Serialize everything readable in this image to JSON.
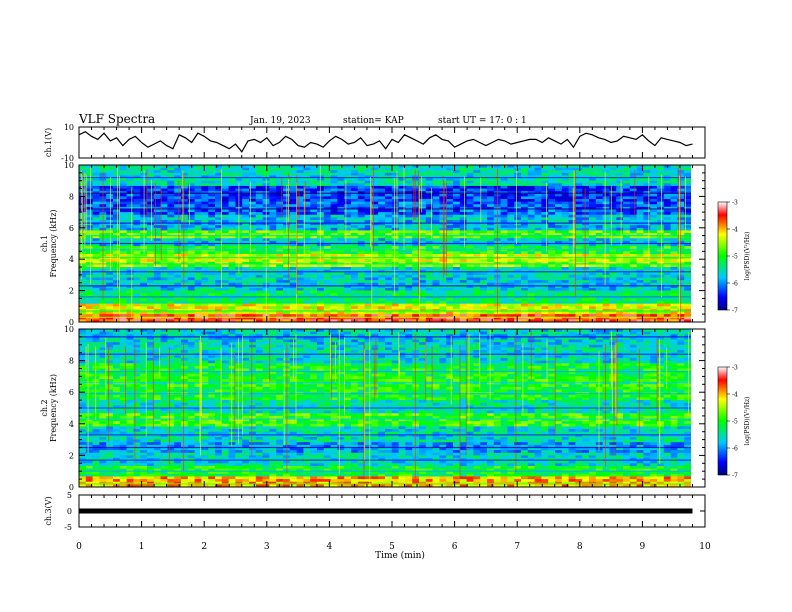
{
  "header": {
    "title": "VLF Spectra",
    "date": "Jan. 19, 2023",
    "station": "station= KAP",
    "start": "start  UT =   17: 0  : 1"
  },
  "chart_data": [
    {
      "type": "line",
      "id": "ch1-waveform",
      "ylabel": "ch.1(V)",
      "ylim": [
        -10,
        10
      ],
      "yticks": [
        "10",
        "-10"
      ],
      "xlim": [
        0,
        10
      ],
      "series": [
        {
          "color": "#000000",
          "x": [
            0,
            0.1,
            0.2,
            0.3,
            0.4,
            0.5,
            0.6,
            0.7,
            0.8,
            0.9,
            1.0,
            1.1,
            1.2,
            1.3,
            1.4,
            1.5,
            1.6,
            1.7,
            1.8,
            1.9,
            2.0,
            2.1,
            2.2,
            2.3,
            2.4,
            2.5,
            2.6,
            2.7,
            2.8,
            2.9,
            3.0,
            3.1,
            3.2,
            3.3,
            3.4,
            3.5,
            3.6,
            3.7,
            3.8,
            3.9,
            4.0,
            4.1,
            4.2,
            4.3,
            4.4,
            4.5,
            4.6,
            4.7,
            4.8,
            4.9,
            5.0,
            5.1,
            5.2,
            5.3,
            5.4,
            5.5,
            5.6,
            5.7,
            5.8,
            5.9,
            6.0,
            6.1,
            6.2,
            6.3,
            6.4,
            6.5,
            6.6,
            6.7,
            6.8,
            6.9,
            7.0,
            7.1,
            7.2,
            7.3,
            7.4,
            7.5,
            7.6,
            7.7,
            7.8,
            7.9,
            8.0,
            8.1,
            8.2,
            8.3,
            8.4,
            8.5,
            8.6,
            8.7,
            8.8,
            8.9,
            9.0,
            9.1,
            9.2,
            9.3,
            9.4,
            9.5,
            9.6,
            9.7,
            9.8
          ],
          "y": [
            5,
            7,
            4,
            2,
            6,
            1,
            3,
            -2,
            2,
            4,
            0,
            -3,
            -1,
            1,
            -2,
            -4,
            5,
            3,
            0,
            6,
            4,
            1,
            0,
            -2,
            -4,
            -1,
            -6,
            1,
            2,
            0,
            3,
            -2,
            0,
            4,
            2,
            -2,
            -3,
            0,
            -1,
            -3,
            1,
            4,
            2,
            -1,
            0,
            3,
            -2,
            -1,
            1,
            -4,
            2,
            0,
            5,
            3,
            1,
            -1,
            3,
            5,
            2,
            1,
            -3,
            -1,
            1,
            2,
            0,
            -2,
            0,
            2,
            1,
            -1,
            0,
            1,
            2,
            2,
            0,
            3,
            1,
            -1,
            2,
            -3,
            4,
            6,
            5,
            3,
            2,
            0,
            1,
            4,
            3,
            2,
            5,
            1,
            -2,
            3,
            2,
            1,
            0,
            -2,
            -1
          ]
        }
      ]
    },
    {
      "type": "heatmap",
      "id": "ch1-spectrogram",
      "ylabel": "ch.1\nFrequency (kHz)",
      "ylim": [
        0,
        10
      ],
      "yticks": [
        "0",
        "2",
        "4",
        "6",
        "8",
        "10"
      ],
      "xlim": [
        0,
        10
      ],
      "colorbar": {
        "label": "log(PSD)(V²/Hz)",
        "range": [
          -7,
          -3
        ],
        "ticks": [
          "-3",
          "-4",
          "-5",
          "-6",
          "-7"
        ]
      },
      "bands_khz": [
        {
          "f": 0.3,
          "level": -3.6
        },
        {
          "f": 0.7,
          "level": -4.3
        },
        {
          "f": 1.6,
          "level": -5.3
        },
        {
          "f": 2.3,
          "level": -5.7
        },
        {
          "f": 3.2,
          "level": -5.6
        },
        {
          "f": 3.7,
          "level": -4.6
        },
        {
          "f": 4.1,
          "level": -4.4
        },
        {
          "f": 4.6,
          "level": -5.0
        },
        {
          "f": 5.0,
          "level": -5.7
        },
        {
          "f": 5.5,
          "level": -4.8
        },
        {
          "f": 6.3,
          "level": -5.8
        },
        {
          "f": 7.2,
          "level": -6.2
        },
        {
          "f": 8.2,
          "level": -6.3
        },
        {
          "f": 9.2,
          "level": -5.6
        }
      ]
    },
    {
      "type": "heatmap",
      "id": "ch2-spectrogram",
      "ylabel": "ch.2\nFrequency (kHz)",
      "ylim": [
        0,
        10
      ],
      "yticks": [
        "0",
        "2",
        "4",
        "6",
        "8",
        "10"
      ],
      "xlim": [
        0,
        10
      ],
      "colorbar": {
        "label": "log(PSD)(V²/Hz)",
        "range": [
          -7,
          -3
        ],
        "ticks": [
          "-3",
          "-4",
          "-5",
          "-6",
          "-7"
        ]
      },
      "bands_khz": [
        {
          "f": 0.2,
          "level": -4.0
        },
        {
          "f": 1.0,
          "level": -5.1
        },
        {
          "f": 1.7,
          "level": -5.6
        },
        {
          "f": 2.5,
          "level": -5.9
        },
        {
          "f": 3.3,
          "level": -5.6
        },
        {
          "f": 4.3,
          "level": -4.9
        },
        {
          "f": 5.0,
          "level": -5.5
        },
        {
          "f": 5.9,
          "level": -5.1
        },
        {
          "f": 6.6,
          "level": -5.0
        },
        {
          "f": 7.3,
          "level": -5.1
        },
        {
          "f": 8.4,
          "level": -5.6
        },
        {
          "f": 9.5,
          "level": -5.7
        }
      ]
    },
    {
      "type": "line",
      "id": "ch3-waveform",
      "ylabel": "ch.3(V)",
      "ylim": [
        -5,
        5
      ],
      "yticks": [
        "5",
        "0",
        "-5"
      ],
      "xlim": [
        0,
        10
      ],
      "series": [
        {
          "color": "#000000",
          "x": [
            0,
            9.8
          ],
          "y": [
            0,
            0
          ]
        }
      ]
    }
  ],
  "xaxis": {
    "label": "Time (min)",
    "ticks": [
      "0",
      "1",
      "2",
      "3",
      "4",
      "5",
      "6",
      "7",
      "8",
      "9",
      "10"
    ]
  }
}
